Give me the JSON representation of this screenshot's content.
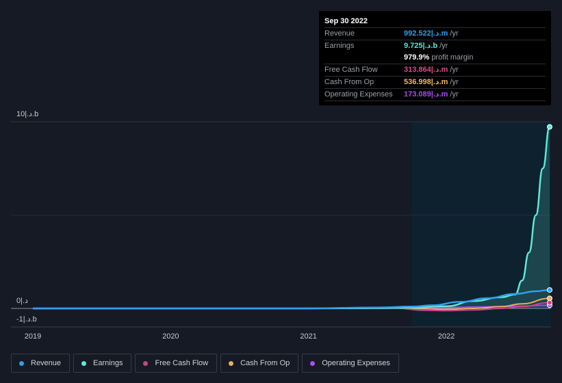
{
  "tooltip": {
    "date": "Sep 30 2022",
    "rows": [
      {
        "label": "Revenue",
        "value": "992.522|.د.m",
        "unit": "/yr",
        "color": "#2f9fe8"
      },
      {
        "label": "Earnings",
        "value": "9.725|.د.b",
        "unit": "/yr",
        "color": "#5ee8d8"
      },
      {
        "label": "",
        "value": "979.9%",
        "unit": "profit margin",
        "color": "#ffffff"
      },
      {
        "label": "Free Cash Flow",
        "value": "313.864|.د.m",
        "unit": "/yr",
        "color": "#e0498a"
      },
      {
        "label": "Cash From Op",
        "value": "536.998|.د.m",
        "unit": "/yr",
        "color": "#f2b66d"
      },
      {
        "label": "Operating Expenses",
        "value": "173.089|.د.m",
        "unit": "/yr",
        "color": "#a64ef0"
      }
    ]
  },
  "legend": [
    {
      "label": "Revenue",
      "color": "#2f9fe8"
    },
    {
      "label": "Earnings",
      "color": "#5ee8d8"
    },
    {
      "label": "Free Cash Flow",
      "color": "#c8457e"
    },
    {
      "label": "Cash From Op",
      "color": "#e9ad62"
    },
    {
      "label": "Operating Expenses",
      "color": "#a64ef0"
    }
  ],
  "chart_data": {
    "type": "line",
    "title": "",
    "unit": "billions",
    "y_ticks": [
      {
        "value": 10,
        "label": "10|.د.b"
      },
      {
        "value": 0,
        "label": "0|.د"
      },
      {
        "value": -1,
        "label": "-1|.د.b"
      }
    ],
    "ylim": [
      -1,
      10
    ],
    "xlim": [
      2019,
      2022.75
    ],
    "x_ticks": [
      {
        "value": 2019,
        "label": "2019"
      },
      {
        "value": 2020,
        "label": "2020"
      },
      {
        "value": 2021,
        "label": "2021"
      },
      {
        "value": 2022,
        "label": "2022"
      }
    ],
    "highlight_start": 2021.75,
    "series": [
      {
        "name": "Revenue",
        "color": "#2f9fe8",
        "x": [
          2019,
          2020,
          2021,
          2021.5,
          2021.75,
          2021.9,
          2022.1,
          2022.3,
          2022.5,
          2022.65,
          2022.75
        ],
        "y": [
          0,
          0,
          0,
          0.05,
          0.1,
          0.17,
          0.35,
          0.55,
          0.78,
          0.92,
          0.99
        ]
      },
      {
        "name": "Earnings",
        "color": "#5ee8d8",
        "x": [
          2019,
          2020,
          2021,
          2021.5,
          2021.75,
          2022,
          2022.2,
          2022.4,
          2022.5,
          2022.55,
          2022.6,
          2022.65,
          2022.7,
          2022.75
        ],
        "y": [
          0,
          0,
          0,
          0.02,
          0.04,
          0.12,
          0.4,
          0.6,
          0.75,
          1.5,
          3.0,
          5.0,
          7.5,
          9.725
        ]
      },
      {
        "name": "Free Cash Flow",
        "color": "#c8457e",
        "x": [
          2019,
          2020,
          2021,
          2021.6,
          2021.85,
          2022.0,
          2022.2,
          2022.4,
          2022.55,
          2022.75
        ],
        "y": [
          0,
          0,
          0,
          0.03,
          -0.1,
          -0.12,
          -0.08,
          0.0,
          0.1,
          0.31
        ]
      },
      {
        "name": "Cash From Op",
        "color": "#e9ad62",
        "x": [
          2019,
          2020,
          2021,
          2021.6,
          2021.85,
          2022.0,
          2022.2,
          2022.4,
          2022.55,
          2022.75
        ],
        "y": [
          0,
          0,
          0,
          0.06,
          -0.02,
          -0.05,
          0.0,
          0.1,
          0.25,
          0.54
        ]
      },
      {
        "name": "Operating Expenses",
        "color": "#a64ef0",
        "x": [
          2019,
          2020,
          2021,
          2021.5,
          2021.75,
          2022.0,
          2022.25,
          2022.5,
          2022.75
        ],
        "y": [
          0,
          0,
          0,
          0.01,
          0.02,
          0.05,
          0.08,
          0.12,
          0.17
        ]
      }
    ]
  }
}
